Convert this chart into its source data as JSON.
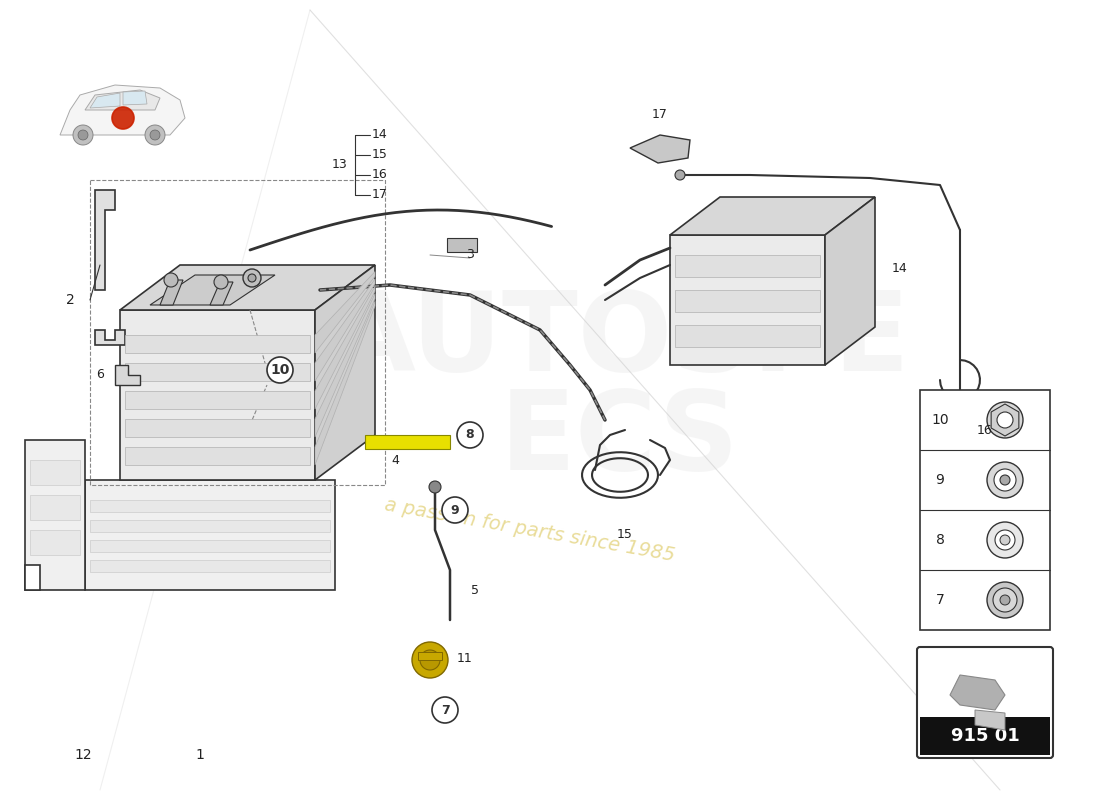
{
  "background_color": "#ffffff",
  "watermark_text": "a passion for parts since 1985",
  "watermark_color": "#c8a800",
  "watermark_alpha": 0.4,
  "part_number_box": "915 01",
  "line_color": "#333333",
  "diagonal_line": [
    [
      0.3,
      0.98
    ],
    [
      0.95,
      0.02
    ]
  ],
  "diagonal2_line": [
    [
      0.3,
      0.98
    ],
    [
      0.1,
      0.02
    ]
  ]
}
